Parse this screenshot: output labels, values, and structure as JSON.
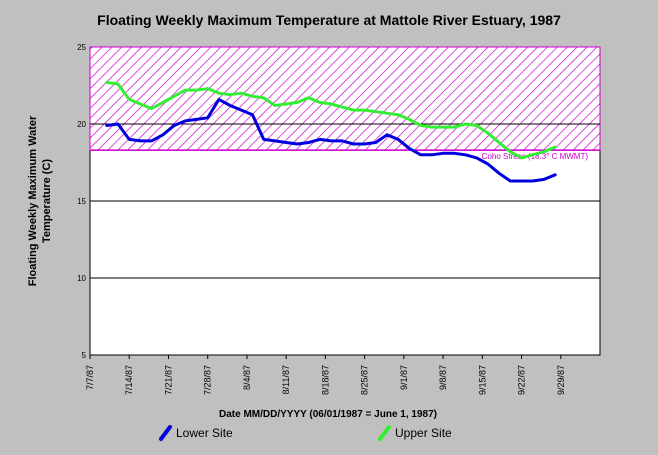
{
  "chart_data": {
    "type": "line",
    "title": "Floating Weekly Maximum Temperature at Mattole River Estuary, 1987",
    "ylabel_line1": "Floating Weekly Maximum Water",
    "ylabel_line2": "Temperature (C)",
    "xlabel": "Date MM/DD/YYYY (06/01/1987 = June 1, 1987)",
    "ylim": [
      5,
      25
    ],
    "y_ticks": [
      5,
      10,
      15,
      20,
      25
    ],
    "x_start": "1987-07-07",
    "x_end": "1987-10-06",
    "x_ticks": [
      "7/7/87",
      "7/14/87",
      "7/21/87",
      "7/28/87",
      "8/4/87",
      "8/11/87",
      "8/18/87",
      "8/25/87",
      "9/1/87",
      "9/8/87",
      "9/15/87",
      "9/22/87",
      "9/29/87"
    ],
    "grid": "horizontal",
    "threshold": {
      "label": "Coho Stress (18.3° C MWMT)",
      "from": 18.3,
      "to": 25,
      "color": "#cc00cc"
    },
    "series": [
      {
        "name": "Lower Site",
        "color": "#0000dd",
        "x": [
          "1987-07-10",
          "1987-07-12",
          "1987-07-14",
          "1987-07-16",
          "1987-07-18",
          "1987-07-20",
          "1987-07-22",
          "1987-07-24",
          "1987-07-26",
          "1987-07-28",
          "1987-07-30",
          "1987-08-01",
          "1987-08-03",
          "1987-08-05",
          "1987-08-07",
          "1987-08-09",
          "1987-08-11",
          "1987-08-13",
          "1987-08-15",
          "1987-08-17",
          "1987-08-19",
          "1987-08-21",
          "1987-08-23",
          "1987-08-25",
          "1987-08-27",
          "1987-08-29",
          "1987-08-31",
          "1987-09-02",
          "1987-09-04",
          "1987-09-06",
          "1987-09-08",
          "1987-09-10",
          "1987-09-12",
          "1987-09-14",
          "1987-09-16",
          "1987-09-18",
          "1987-09-20",
          "1987-09-22",
          "1987-09-24",
          "1987-09-26",
          "1987-09-28"
        ],
        "values": [
          19.9,
          20.0,
          19.0,
          18.9,
          18.9,
          19.3,
          19.9,
          20.2,
          20.3,
          20.4,
          21.6,
          21.2,
          20.9,
          20.6,
          19.0,
          18.9,
          18.8,
          18.7,
          18.8,
          19.0,
          18.9,
          18.9,
          18.7,
          18.7,
          18.8,
          19.3,
          19.0,
          18.4,
          18.0,
          18.0,
          18.1,
          18.1,
          18.0,
          17.8,
          17.4,
          16.8,
          16.3,
          16.3,
          16.3,
          16.4,
          16.7
        ]
      },
      {
        "name": "Upper Site",
        "color": "#33ee33",
        "x": [
          "1987-07-10",
          "1987-07-12",
          "1987-07-14",
          "1987-07-16",
          "1987-07-18",
          "1987-07-20",
          "1987-07-22",
          "1987-07-24",
          "1987-07-26",
          "1987-07-28",
          "1987-07-30",
          "1987-08-01",
          "1987-08-03",
          "1987-08-05",
          "1987-08-07",
          "1987-08-09",
          "1987-08-11",
          "1987-08-13",
          "1987-08-15",
          "1987-08-17",
          "1987-08-19",
          "1987-08-21",
          "1987-08-23",
          "1987-08-25",
          "1987-08-27",
          "1987-08-29",
          "1987-08-31",
          "1987-09-02",
          "1987-09-04",
          "1987-09-06",
          "1987-09-08",
          "1987-09-10",
          "1987-09-12",
          "1987-09-14",
          "1987-09-16",
          "1987-09-18",
          "1987-09-20",
          "1987-09-22",
          "1987-09-24",
          "1987-09-26",
          "1987-09-28"
        ],
        "values": [
          22.7,
          22.6,
          21.6,
          21.3,
          21.0,
          21.4,
          21.8,
          22.2,
          22.2,
          22.3,
          22.0,
          21.9,
          22.0,
          21.8,
          21.7,
          21.2,
          21.3,
          21.4,
          21.7,
          21.4,
          21.3,
          21.1,
          20.9,
          20.9,
          20.8,
          20.7,
          20.6,
          20.3,
          19.9,
          19.8,
          19.8,
          19.8,
          20.0,
          19.9,
          19.4,
          18.8,
          18.2,
          17.8,
          18.0,
          18.2,
          18.5
        ]
      }
    ]
  }
}
